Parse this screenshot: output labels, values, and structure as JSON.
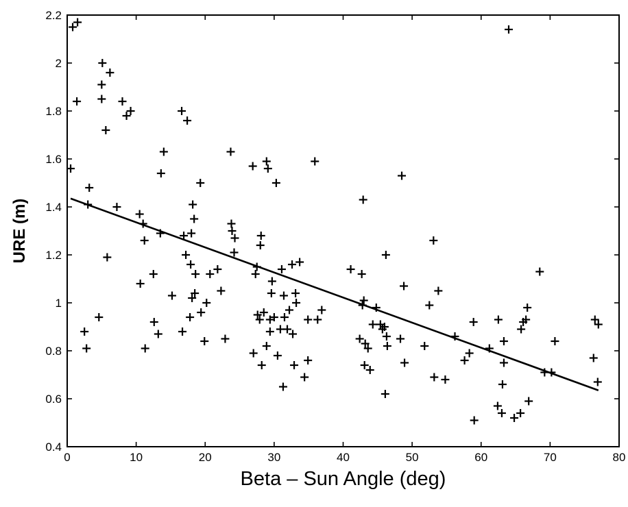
{
  "chart_data": {
    "type": "scatter",
    "title": "",
    "xlabel": "Beta – Sun Angle (deg)",
    "ylabel": "URE (m)",
    "xlim": [
      0,
      80
    ],
    "ylim": [
      0.4,
      2.2
    ],
    "x_ticks": [
      0,
      10,
      20,
      30,
      40,
      50,
      60,
      70,
      80
    ],
    "y_ticks": [
      0.4,
      0.6,
      0.8,
      1,
      1.2,
      1.4,
      1.6,
      1.8,
      2,
      2.2
    ],
    "x_tick_labels": [
      "0",
      "10",
      "20",
      "30",
      "40",
      "50",
      "60",
      "70",
      "80"
    ],
    "y_tick_labels": [
      "0.4",
      "0.6",
      "0.8",
      "1",
      "1.2",
      "1.4",
      "1.6",
      "1.8",
      "2",
      "2.2"
    ],
    "grid": false,
    "marker": "plus",
    "points": [
      [
        0.5,
        1.56
      ],
      [
        0.8,
        2.15
      ],
      [
        1.5,
        2.17
      ],
      [
        1.4,
        1.84
      ],
      [
        2.5,
        0.88
      ],
      [
        2.8,
        0.81
      ],
      [
        3.0,
        1.41
      ],
      [
        3.2,
        1.48
      ],
      [
        4.6,
        0.94
      ],
      [
        5.1,
        2.0
      ],
      [
        5.0,
        1.91
      ],
      [
        5.0,
        1.85
      ],
      [
        5.6,
        1.72
      ],
      [
        5.8,
        1.19
      ],
      [
        6.2,
        1.96
      ],
      [
        7.2,
        1.4
      ],
      [
        8.0,
        1.84
      ],
      [
        8.6,
        1.78
      ],
      [
        9.2,
        1.8
      ],
      [
        10.5,
        1.37
      ],
      [
        10.6,
        1.08
      ],
      [
        11.0,
        1.33
      ],
      [
        11.2,
        1.26
      ],
      [
        11.3,
        0.81
      ],
      [
        12.5,
        1.12
      ],
      [
        12.6,
        0.92
      ],
      [
        13.2,
        0.87
      ],
      [
        13.5,
        1.29
      ],
      [
        13.6,
        1.54
      ],
      [
        14.0,
        1.63
      ],
      [
        15.2,
        1.03
      ],
      [
        16.6,
        1.8
      ],
      [
        16.7,
        0.88
      ],
      [
        16.9,
        1.28
      ],
      [
        17.2,
        1.2
      ],
      [
        17.4,
        1.76
      ],
      [
        17.8,
        0.94
      ],
      [
        17.9,
        1.16
      ],
      [
        18.0,
        1.29
      ],
      [
        18.1,
        1.02
      ],
      [
        18.2,
        1.41
      ],
      [
        18.4,
        1.35
      ],
      [
        18.5,
        1.04
      ],
      [
        18.6,
        1.12
      ],
      [
        19.3,
        1.5
      ],
      [
        19.4,
        0.96
      ],
      [
        19.9,
        0.84
      ],
      [
        20.2,
        1.0
      ],
      [
        20.7,
        1.12
      ],
      [
        21.8,
        1.14
      ],
      [
        22.3,
        1.05
      ],
      [
        22.9,
        0.85
      ],
      [
        23.7,
        1.63
      ],
      [
        23.8,
        1.33
      ],
      [
        23.9,
        1.3
      ],
      [
        24.2,
        1.21
      ],
      [
        24.3,
        1.27
      ],
      [
        26.9,
        1.57
      ],
      [
        27.0,
        0.79
      ],
      [
        27.3,
        1.12
      ],
      [
        27.5,
        1.15
      ],
      [
        27.6,
        0.95
      ],
      [
        27.9,
        0.93
      ],
      [
        28.0,
        1.24
      ],
      [
        28.1,
        1.28
      ],
      [
        28.2,
        0.74
      ],
      [
        28.5,
        0.96
      ],
      [
        28.9,
        1.59
      ],
      [
        28.9,
        0.82
      ],
      [
        29.1,
        1.56
      ],
      [
        29.4,
        0.93
      ],
      [
        29.4,
        0.88
      ],
      [
        29.6,
        1.04
      ],
      [
        29.7,
        1.09
      ],
      [
        30.0,
        0.94
      ],
      [
        30.3,
        1.5
      ],
      [
        30.5,
        0.78
      ],
      [
        30.9,
        0.89
      ],
      [
        31.1,
        1.14
      ],
      [
        31.3,
        0.65
      ],
      [
        31.4,
        1.03
      ],
      [
        31.5,
        0.94
      ],
      [
        31.9,
        0.89
      ],
      [
        32.2,
        0.97
      ],
      [
        32.6,
        1.16
      ],
      [
        32.7,
        0.87
      ],
      [
        32.9,
        0.74
      ],
      [
        33.1,
        1.04
      ],
      [
        33.2,
        1.0
      ],
      [
        33.7,
        1.17
      ],
      [
        34.4,
        0.69
      ],
      [
        34.9,
        0.76
      ],
      [
        34.9,
        0.93
      ],
      [
        35.9,
        1.59
      ],
      [
        36.3,
        0.93
      ],
      [
        36.9,
        0.97
      ],
      [
        41.1,
        1.14
      ],
      [
        42.4,
        0.85
      ],
      [
        42.7,
        1.12
      ],
      [
        42.8,
        0.99
      ],
      [
        42.9,
        1.43
      ],
      [
        43.0,
        1.01
      ],
      [
        43.1,
        0.74
      ],
      [
        43.2,
        0.83
      ],
      [
        43.6,
        0.81
      ],
      [
        43.9,
        0.72
      ],
      [
        44.3,
        0.91
      ],
      [
        44.8,
        0.98
      ],
      [
        45.4,
        0.91
      ],
      [
        45.7,
        0.89
      ],
      [
        46.0,
        0.9
      ],
      [
        46.1,
        0.62
      ],
      [
        46.2,
        1.2
      ],
      [
        46.3,
        0.86
      ],
      [
        46.4,
        0.82
      ],
      [
        48.3,
        0.85
      ],
      [
        48.5,
        1.53
      ],
      [
        48.8,
        1.07
      ],
      [
        48.9,
        0.75
      ],
      [
        51.8,
        0.82
      ],
      [
        52.5,
        0.99
      ],
      [
        53.1,
        1.26
      ],
      [
        53.2,
        0.69
      ],
      [
        53.8,
        1.05
      ],
      [
        54.8,
        0.68
      ],
      [
        56.2,
        0.86
      ],
      [
        57.6,
        0.76
      ],
      [
        58.3,
        0.79
      ],
      [
        58.9,
        0.92
      ],
      [
        59.0,
        0.51
      ],
      [
        61.2,
        0.81
      ],
      [
        62.4,
        0.57
      ],
      [
        62.5,
        0.93
      ],
      [
        63.0,
        0.54
      ],
      [
        63.1,
        0.66
      ],
      [
        63.3,
        0.75
      ],
      [
        63.3,
        0.84
      ],
      [
        64.0,
        2.14
      ],
      [
        64.8,
        0.52
      ],
      [
        65.7,
        0.54
      ],
      [
        65.8,
        0.89
      ],
      [
        66.1,
        0.92
      ],
      [
        66.5,
        0.93
      ],
      [
        66.7,
        0.98
      ],
      [
        66.9,
        0.59
      ],
      [
        68.5,
        1.13
      ],
      [
        69.2,
        0.71
      ],
      [
        70.2,
        0.71
      ],
      [
        70.7,
        0.84
      ],
      [
        76.3,
        0.77
      ],
      [
        76.5,
        0.93
      ],
      [
        76.9,
        0.67
      ],
      [
        77.0,
        0.91
      ]
    ],
    "fit_line": {
      "x": [
        0.5,
        77.0
      ],
      "y": [
        1.435,
        0.635
      ]
    }
  }
}
